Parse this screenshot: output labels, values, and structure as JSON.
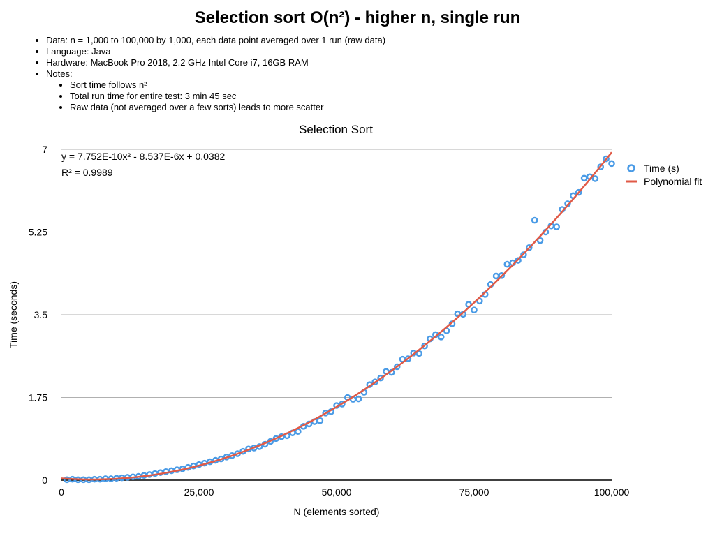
{
  "page": {
    "title": "Selection sort O(n²) - higher n, single run",
    "notes": {
      "data": "Data: n = 1,000 to 100,000 by 1,000, each data point averaged over 1 run (raw data)",
      "language": "Language: Java",
      "hardware": "Hardware: MacBook Pro 2018, 2.2 GHz Intel Core i7, 16GB RAM",
      "notes_label": "Notes:",
      "sub": [
        "Sort time follows n²",
        "Total run time for entire test: 3 min 45 sec",
        "Raw data (not averaged over a few sorts) leads to more scatter"
      ]
    }
  },
  "colors": {
    "points": "#4a9be6",
    "fit": "#e05a47",
    "grid": "#b0b0b0"
  },
  "chart_data": {
    "type": "scatter",
    "title": "Selection Sort",
    "xlabel": "N (elements sorted)",
    "ylabel": "Time (seconds)",
    "xlim": [
      0,
      100000
    ],
    "ylim": [
      0,
      7
    ],
    "x_ticks": [
      0,
      25000,
      50000,
      75000,
      100000
    ],
    "x_tick_labels": [
      "0",
      "25,000",
      "50,000",
      "75,000",
      "100,000"
    ],
    "y_ticks": [
      0,
      1.75,
      3.5,
      5.25,
      7
    ],
    "y_tick_labels": [
      "0",
      "1.75",
      "3.5",
      "5.25",
      "7"
    ],
    "grid": "horizontal",
    "legend_position": "right",
    "equation": "y = 7.752E-10x² - 8.537E-6x + 0.0382",
    "r_squared": "R² = 0.9989",
    "series": [
      {
        "name": "Time (s)",
        "type": "scatter",
        "x": [
          1000,
          2000,
          3000,
          4000,
          5000,
          6000,
          7000,
          8000,
          9000,
          10000,
          11000,
          12000,
          13000,
          14000,
          15000,
          16000,
          17000,
          18000,
          19000,
          20000,
          21000,
          22000,
          23000,
          24000,
          25000,
          26000,
          27000,
          28000,
          29000,
          30000,
          31000,
          32000,
          33000,
          34000,
          35000,
          36000,
          37000,
          38000,
          39000,
          40000,
          41000,
          42000,
          43000,
          44000,
          45000,
          46000,
          47000,
          48000,
          49000,
          50000,
          51000,
          52000,
          53000,
          54000,
          55000,
          56000,
          57000,
          58000,
          59000,
          60000,
          61000,
          62000,
          63000,
          64000,
          65000,
          66000,
          67000,
          68000,
          69000,
          70000,
          71000,
          72000,
          73000,
          74000,
          75000,
          76000,
          77000,
          78000,
          79000,
          80000,
          81000,
          82000,
          83000,
          84000,
          85000,
          86000,
          87000,
          88000,
          89000,
          90000,
          91000,
          92000,
          93000,
          94000,
          95000,
          96000,
          97000,
          98000,
          99000,
          100000
        ],
        "y": [
          0.01,
          0.02,
          0.01,
          0.01,
          0.01,
          0.02,
          0.02,
          0.03,
          0.03,
          0.04,
          0.05,
          0.06,
          0.07,
          0.08,
          0.1,
          0.12,
          0.14,
          0.16,
          0.18,
          0.2,
          0.22,
          0.24,
          0.27,
          0.3,
          0.33,
          0.36,
          0.39,
          0.42,
          0.45,
          0.49,
          0.52,
          0.56,
          0.61,
          0.66,
          0.68,
          0.71,
          0.76,
          0.82,
          0.88,
          0.92,
          0.94,
          1.0,
          1.03,
          1.14,
          1.19,
          1.24,
          1.26,
          1.42,
          1.45,
          1.58,
          1.61,
          1.75,
          1.71,
          1.72,
          1.86,
          2.02,
          2.08,
          2.16,
          2.3,
          2.28,
          2.4,
          2.56,
          2.57,
          2.69,
          2.68,
          2.84,
          2.99,
          3.08,
          3.03,
          3.16,
          3.31,
          3.52,
          3.51,
          3.72,
          3.6,
          3.79,
          3.93,
          4.14,
          4.32,
          4.33,
          4.57,
          4.6,
          4.65,
          4.77,
          4.92,
          5.5,
          5.07,
          5.25,
          5.38,
          5.36,
          5.73,
          5.85,
          6.02,
          6.09,
          6.39,
          6.42,
          6.38,
          6.63,
          6.8,
          6.7
        ]
      },
      {
        "name": "Polynomial fit",
        "type": "line",
        "coefficients": {
          "a": 7.752e-10,
          "b": -8.537e-06,
          "c": 0.0382
        }
      }
    ]
  }
}
